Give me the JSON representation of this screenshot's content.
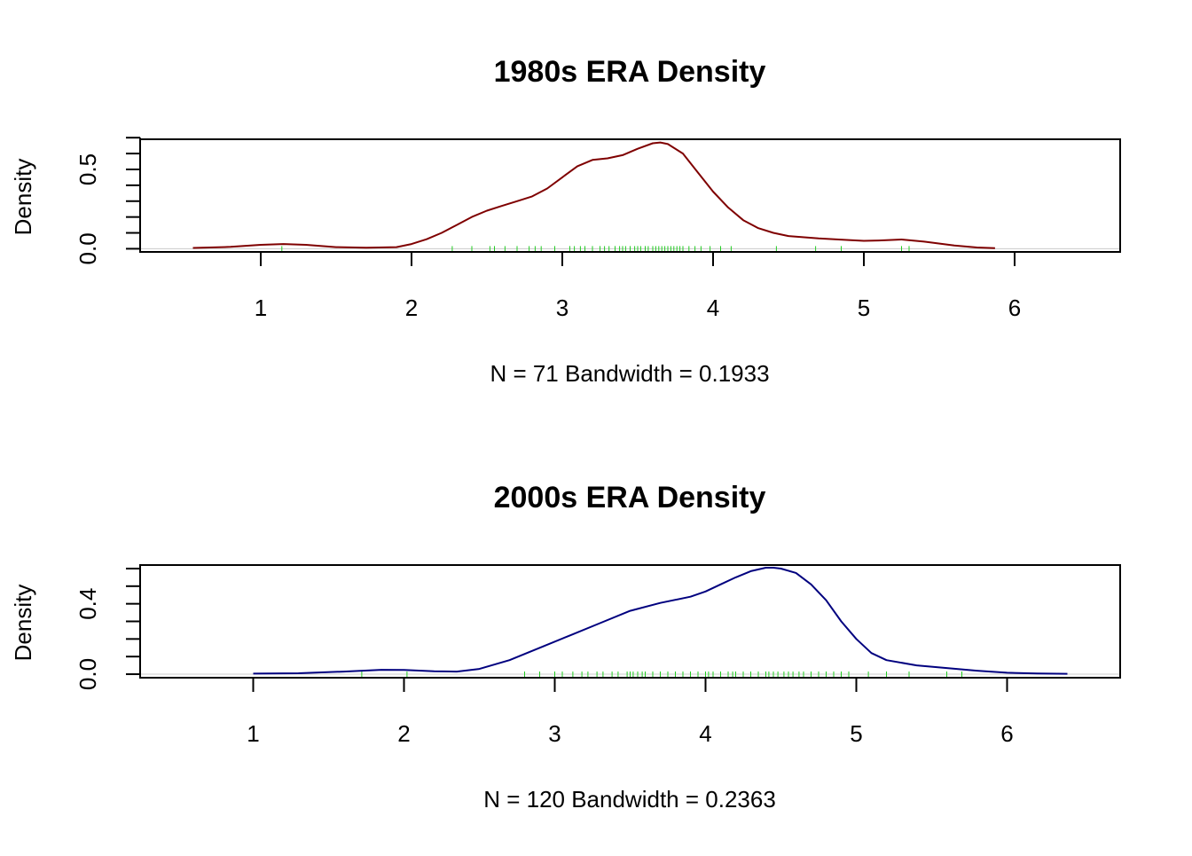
{
  "chart_data": [
    {
      "type": "line",
      "title": "1980s ERA Density",
      "xlabel": "N = 71   Bandwidth = 0.1933",
      "ylabel": "Density",
      "xlim": [
        0.2,
        6.7
      ],
      "ylim": [
        -0.02,
        0.69
      ],
      "x_ticks": [
        1,
        2,
        3,
        4,
        5,
        6
      ],
      "x_tick_labels": [
        "1",
        "2",
        "3",
        "4",
        "5",
        "6"
      ],
      "y_ticks": [
        0.0,
        0.1,
        0.2,
        0.3,
        0.4,
        0.5,
        0.6,
        0.7
      ],
      "y_tick_labels": [
        "0.0",
        "0.5"
      ],
      "y_labeled_ticks": [
        0.0,
        0.5
      ],
      "line_color": "#7f0000",
      "rug_color": "#22cc22",
      "series": [
        {
          "name": "density",
          "x": [
            0.55,
            0.8,
            1.0,
            1.15,
            1.3,
            1.5,
            1.7,
            1.9,
            2.0,
            2.1,
            2.2,
            2.3,
            2.4,
            2.5,
            2.6,
            2.7,
            2.8,
            2.9,
            3.0,
            3.1,
            3.2,
            3.3,
            3.4,
            3.5,
            3.6,
            3.65,
            3.7,
            3.8,
            3.9,
            4.0,
            4.1,
            4.2,
            4.3,
            4.4,
            4.5,
            4.7,
            4.9,
            5.0,
            5.1,
            5.25,
            5.4,
            5.6,
            5.75,
            5.87
          ],
          "values": [
            0.005,
            0.012,
            0.025,
            0.03,
            0.025,
            0.01,
            0.006,
            0.01,
            0.03,
            0.06,
            0.1,
            0.15,
            0.2,
            0.24,
            0.27,
            0.3,
            0.33,
            0.38,
            0.45,
            0.52,
            0.56,
            0.57,
            0.59,
            0.63,
            0.665,
            0.67,
            0.66,
            0.6,
            0.48,
            0.36,
            0.26,
            0.18,
            0.13,
            0.1,
            0.08,
            0.065,
            0.055,
            0.05,
            0.052,
            0.058,
            0.045,
            0.02,
            0.008,
            0.004
          ]
        }
      ],
      "rug": [
        1.14,
        2.27,
        2.4,
        2.52,
        2.55,
        2.62,
        2.7,
        2.78,
        2.82,
        2.86,
        2.95,
        3.05,
        3.08,
        3.12,
        3.15,
        3.2,
        3.25,
        3.28,
        3.31,
        3.35,
        3.38,
        3.4,
        3.42,
        3.45,
        3.48,
        3.5,
        3.52,
        3.55,
        3.57,
        3.6,
        3.62,
        3.64,
        3.66,
        3.68,
        3.7,
        3.72,
        3.74,
        3.76,
        3.78,
        3.8,
        3.84,
        3.88,
        3.92,
        3.98,
        4.05,
        4.12,
        4.42,
        4.68,
        4.85,
        5.25,
        5.3
      ]
    },
    {
      "type": "line",
      "title": "2000s ERA Density",
      "xlabel": "N = 120   Bandwidth = 0.2363",
      "ylabel": "Density",
      "xlim": [
        0.25,
        6.75
      ],
      "ylim": [
        -0.02,
        0.62
      ],
      "x_ticks": [
        1,
        2,
        3,
        4,
        5,
        6
      ],
      "x_tick_labels": [
        "1",
        "2",
        "3",
        "4",
        "5",
        "6"
      ],
      "y_ticks": [
        0.0,
        0.1,
        0.2,
        0.3,
        0.4,
        0.5,
        0.6
      ],
      "y_tick_labels": [
        "0.0",
        "0.4"
      ],
      "y_labeled_ticks": [
        0.0,
        0.4
      ],
      "line_color": "#00007f",
      "rug_color": "#22cc22",
      "series": [
        {
          "name": "density",
          "x": [
            1.0,
            1.3,
            1.6,
            1.85,
            2.0,
            2.2,
            2.35,
            2.5,
            2.7,
            2.9,
            3.1,
            3.3,
            3.5,
            3.7,
            3.9,
            4.0,
            4.1,
            4.2,
            4.3,
            4.4,
            4.45,
            4.5,
            4.6,
            4.7,
            4.8,
            4.9,
            5.0,
            5.1,
            5.2,
            5.4,
            5.6,
            5.8,
            6.0,
            6.2,
            6.4
          ],
          "values": [
            0.003,
            0.005,
            0.015,
            0.025,
            0.024,
            0.017,
            0.015,
            0.03,
            0.08,
            0.15,
            0.22,
            0.29,
            0.36,
            0.405,
            0.44,
            0.47,
            0.51,
            0.55,
            0.585,
            0.605,
            0.605,
            0.6,
            0.575,
            0.51,
            0.42,
            0.3,
            0.2,
            0.12,
            0.08,
            0.05,
            0.035,
            0.02,
            0.008,
            0.004,
            0.002
          ]
        }
      ],
      "rug": [
        1.72,
        2.02,
        2.8,
        2.9,
        3.0,
        3.05,
        3.12,
        3.18,
        3.22,
        3.28,
        3.32,
        3.38,
        3.42,
        3.48,
        3.5,
        3.52,
        3.55,
        3.58,
        3.6,
        3.65,
        3.7,
        3.75,
        3.8,
        3.85,
        3.9,
        3.95,
        4.0,
        4.02,
        4.05,
        4.1,
        4.15,
        4.18,
        4.2,
        4.25,
        4.3,
        4.35,
        4.4,
        4.42,
        4.45,
        4.48,
        4.52,
        4.55,
        4.58,
        4.62,
        4.65,
        4.7,
        4.75,
        4.8,
        4.85,
        4.9,
        4.95,
        5.08,
        5.2,
        5.35,
        5.6,
        5.7
      ]
    }
  ]
}
